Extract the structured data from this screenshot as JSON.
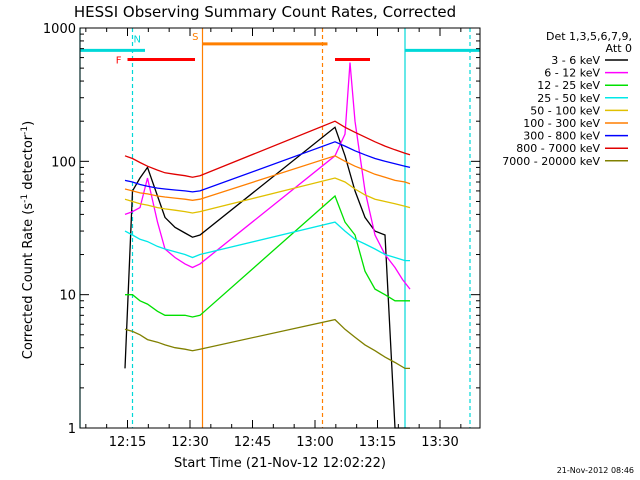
{
  "chart_data": {
    "type": "line",
    "title": "HESSI Observing Summary Count Rates, Corrected",
    "xlabel": "Start Time (21-Nov-12 12:02:22)",
    "ylabel": "Corrected Count Rate (s⁻¹ detector⁻¹)",
    "ylabel_parts": {
      "main": "Corrected Count Rate (s",
      "exp1": "-1",
      "mid": " detector",
      "exp2": "-1",
      "end": ")"
    },
    "yscale": "log",
    "ylim": [
      1,
      1000
    ],
    "xlim_minutes": [
      12.06,
      13.66
    ],
    "x_ticks": [
      "12:15",
      "12:30",
      "12:45",
      "13:00",
      "13:15",
      "13:30"
    ],
    "y_ticks": [
      "1",
      "10",
      "100",
      "1000"
    ],
    "legend_header": [
      "Det 1,3,5,6,7,9,",
      "Att 0"
    ],
    "legend_placement": "right",
    "stamp": "21-Nov-2012 08:46",
    "flags": [
      {
        "label": "N",
        "color": "#00d8d8",
        "y": 680,
        "segments": [
          [
            12.06,
            12.32
          ],
          [
            13.36,
            13.66
          ]
        ]
      },
      {
        "label": "S",
        "color": "#ff7f00",
        "y": 760,
        "segments": [
          [
            12.55,
            13.05
          ]
        ]
      },
      {
        "label": "F",
        "color": "#ff0000",
        "y": 580,
        "segments": [
          [
            12.25,
            12.52
          ],
          [
            13.08,
            13.22
          ]
        ]
      }
    ],
    "vlines": [
      {
        "x": 12.06,
        "color": "#00d8d8",
        "style": "solid"
      },
      {
        "x": 12.27,
        "color": "#00d8d8",
        "style": "dashed"
      },
      {
        "x": 12.55,
        "color": "#ff7f00",
        "style": "solid"
      },
      {
        "x": 13.03,
        "color": "#ff7f00",
        "style": "dashed"
      },
      {
        "x": 13.36,
        "color": "#00d8d8",
        "style": "solid"
      },
      {
        "x": 13.62,
        "color": "#00d8d8",
        "style": "dashed"
      }
    ],
    "series": [
      {
        "name": "3 - 6 keV",
        "color": "#000000",
        "x": [
          12.24,
          12.27,
          12.3,
          12.33,
          12.37,
          12.4,
          12.44,
          12.48,
          12.51,
          12.54,
          13.08,
          13.12,
          13.16,
          13.2,
          13.24,
          13.28,
          13.32,
          13.36,
          13.38
        ],
        "y": [
          2.8,
          60,
          75,
          90,
          55,
          38,
          32,
          29,
          27,
          28,
          180,
          110,
          60,
          38,
          30,
          28,
          1,
          1,
          1
        ]
      },
      {
        "name": "6 - 12 keV",
        "color": "#ff00ff",
        "x": [
          12.24,
          12.27,
          12.3,
          12.33,
          12.37,
          12.4,
          12.44,
          12.48,
          12.51,
          12.54,
          13.08,
          13.12,
          13.14,
          13.16,
          13.2,
          13.24,
          13.28,
          13.32,
          13.35,
          13.38
        ],
        "y": [
          40,
          42,
          45,
          75,
          35,
          22,
          19,
          17,
          16,
          17,
          110,
          160,
          550,
          200,
          60,
          28,
          20,
          16,
          13,
          11
        ]
      },
      {
        "name": "12 - 25 keV",
        "color": "#00e000",
        "x": [
          12.24,
          12.27,
          12.3,
          12.33,
          12.37,
          12.4,
          12.44,
          12.48,
          12.51,
          12.54,
          13.08,
          13.12,
          13.16,
          13.2,
          13.24,
          13.28,
          13.32,
          13.36,
          13.38
        ],
        "y": [
          10,
          10,
          9,
          8.5,
          7.5,
          7,
          7,
          7,
          6.8,
          7,
          55,
          35,
          28,
          15,
          11,
          10,
          9,
          9,
          9
        ]
      },
      {
        "name": "25 - 50 keV",
        "color": "#00e8e8",
        "x": [
          12.24,
          12.27,
          12.3,
          12.33,
          12.37,
          12.4,
          12.44,
          12.48,
          12.51,
          12.54,
          13.08,
          13.12,
          13.16,
          13.2,
          13.24,
          13.28,
          13.32,
          13.36,
          13.38
        ],
        "y": [
          30,
          28,
          26,
          25,
          23,
          22,
          21,
          20,
          19,
          20,
          35,
          30,
          26,
          24,
          22,
          20,
          19,
          18,
          18
        ]
      },
      {
        "name": "50 - 100 keV",
        "color": "#e0c000",
        "x": [
          12.24,
          12.27,
          12.3,
          12.33,
          12.37,
          12.4,
          12.44,
          12.48,
          12.51,
          12.54,
          13.08,
          13.12,
          13.16,
          13.2,
          13.24,
          13.28,
          13.32,
          13.36,
          13.38
        ],
        "y": [
          52,
          50,
          48,
          47,
          45,
          44,
          43,
          42,
          41,
          42,
          75,
          70,
          62,
          56,
          52,
          50,
          48,
          46,
          45
        ]
      },
      {
        "name": "100 - 300 keV",
        "color": "#ff7f00",
        "x": [
          12.24,
          12.27,
          12.3,
          12.33,
          12.37,
          12.4,
          12.44,
          12.48,
          12.51,
          12.54,
          13.08,
          13.12,
          13.16,
          13.2,
          13.24,
          13.28,
          13.32,
          13.36,
          13.38
        ],
        "y": [
          62,
          60,
          58,
          57,
          55,
          54,
          53,
          52,
          51,
          52,
          110,
          100,
          92,
          86,
          80,
          76,
          72,
          70,
          68
        ]
      },
      {
        "name": "300 - 800 keV",
        "color": "#0000ff",
        "x": [
          12.24,
          12.27,
          12.3,
          12.33,
          12.37,
          12.4,
          12.44,
          12.48,
          12.51,
          12.54,
          13.08,
          13.12,
          13.16,
          13.2,
          13.24,
          13.28,
          13.32,
          13.36,
          13.38
        ],
        "y": [
          72,
          70,
          67,
          65,
          63,
          62,
          61,
          60,
          59,
          60,
          140,
          130,
          120,
          112,
          105,
          100,
          96,
          92,
          90
        ]
      },
      {
        "name": "800 - 7000 keV",
        "color": "#e00000",
        "x": [
          12.24,
          12.27,
          12.3,
          12.33,
          12.37,
          12.4,
          12.44,
          12.48,
          12.51,
          12.54,
          13.08,
          13.12,
          13.16,
          13.2,
          13.24,
          13.28,
          13.32,
          13.36,
          13.38
        ],
        "y": [
          110,
          105,
          98,
          92,
          86,
          82,
          80,
          78,
          76,
          78,
          200,
          180,
          165,
          152,
          140,
          130,
          122,
          115,
          112
        ]
      },
      {
        "name": "7000 - 20000 keV",
        "color": "#808000",
        "x": [
          12.24,
          12.27,
          12.3,
          12.33,
          12.37,
          12.4,
          12.44,
          12.48,
          12.51,
          12.54,
          13.08,
          13.12,
          13.16,
          13.2,
          13.24,
          13.28,
          13.32,
          13.36,
          13.38
        ],
        "y": [
          5.5,
          5.3,
          5.0,
          4.6,
          4.4,
          4.2,
          4.0,
          3.9,
          3.8,
          3.9,
          6.5,
          5.5,
          4.8,
          4.2,
          3.8,
          3.4,
          3.1,
          2.8,
          2.8
        ]
      }
    ]
  }
}
